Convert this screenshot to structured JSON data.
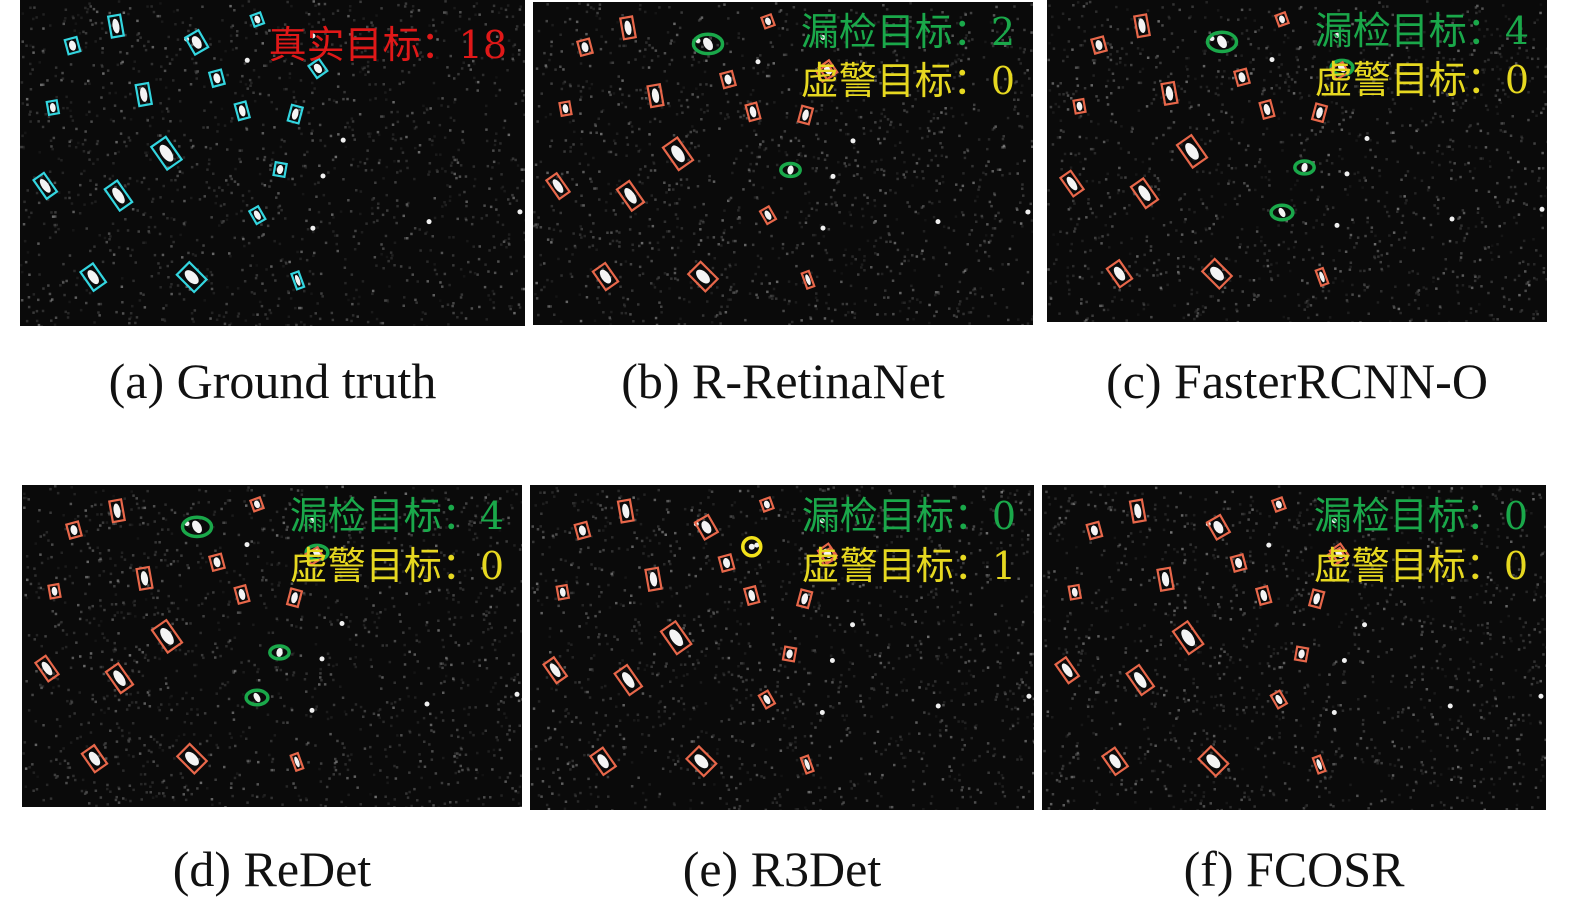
{
  "colors": {
    "gt_box": "#33d6e0",
    "det_box": "#e8674a",
    "missed": "#1aa84a",
    "false_alarm": "#f2e21a",
    "gt_count_text": "#e01818",
    "missed_text": "#1aa84a",
    "false_text": "#e6d820"
  },
  "panels": [
    {
      "id": "a",
      "caption": "(a) Ground truth",
      "box_style": "gt",
      "lines": [
        {
          "label": "真实目标：",
          "value": "18",
          "style": "gt_count"
        }
      ]
    },
    {
      "id": "b",
      "caption": "(b) R-RetinaNet",
      "box_style": "det",
      "lines": [
        {
          "label": "漏检目标：",
          "value": "2",
          "style": "missed"
        },
        {
          "label": "虚警目标：",
          "value": "0",
          "style": "false"
        }
      ]
    },
    {
      "id": "c",
      "caption": "(c) FasterRCNN-O",
      "box_style": "det",
      "lines": [
        {
          "label": "漏检目标：",
          "value": "4",
          "style": "missed"
        },
        {
          "label": "虚警目标：",
          "value": "0",
          "style": "false"
        }
      ]
    },
    {
      "id": "d",
      "caption": "(d) ReDet",
      "box_style": "det",
      "lines": [
        {
          "label": "漏检目标：",
          "value": "4",
          "style": "missed"
        },
        {
          "label": "虚警目标：",
          "value": "0",
          "style": "false"
        }
      ]
    },
    {
      "id": "e",
      "caption": "(e) R3Det",
      "box_style": "det",
      "lines": [
        {
          "label": "漏检目标：",
          "value": "0",
          "style": "missed"
        },
        {
          "label": "虚警目标：",
          "value": "1",
          "style": "false"
        }
      ]
    },
    {
      "id": "f",
      "caption": "(f) FCOSR",
      "box_style": "det",
      "lines": [
        {
          "label": "漏检目标：",
          "value": "0",
          "style": "missed"
        },
        {
          "label": "虚警目标：",
          "value": "0",
          "style": "false"
        }
      ]
    }
  ]
}
